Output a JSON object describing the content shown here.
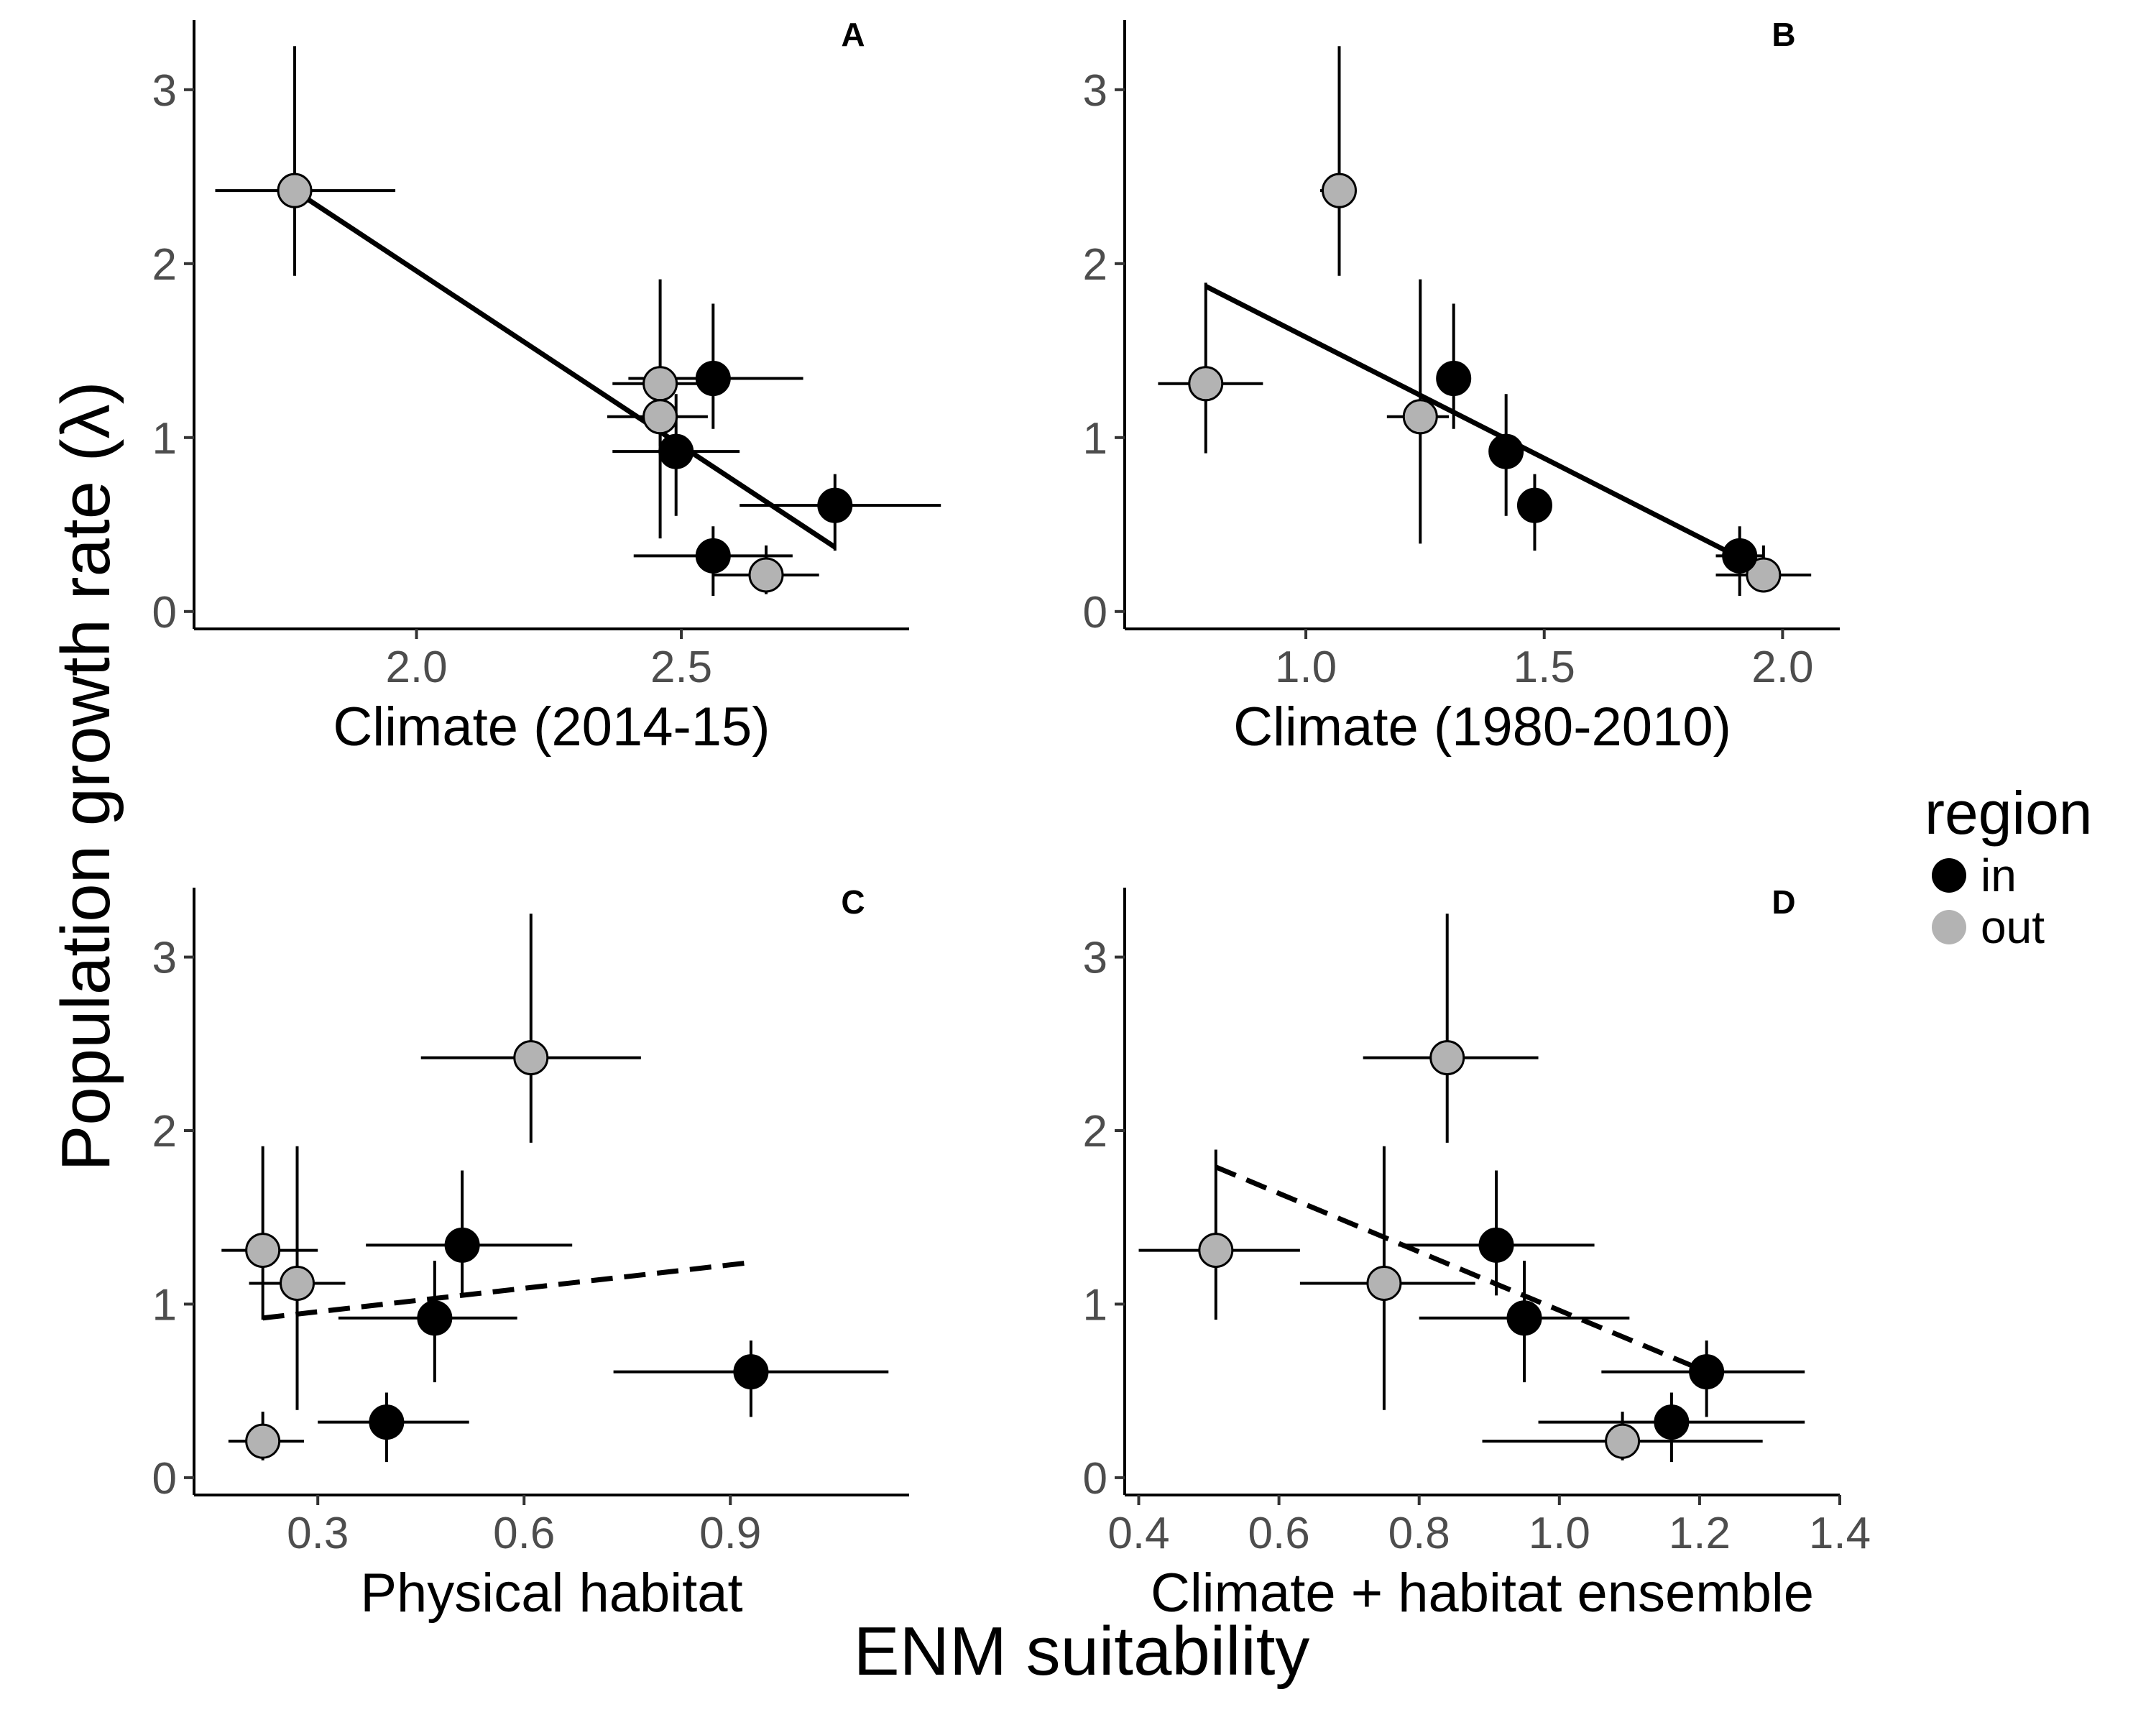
{
  "figure": {
    "ylabel": "Population growth rate (λ)",
    "xlabel": "ENM suitability"
  },
  "legend": {
    "title": "region",
    "items": [
      {
        "label": "in",
        "color": "#000000"
      },
      {
        "label": "out",
        "color": "#b3b3b3"
      }
    ]
  },
  "colors": {
    "in": "#000000",
    "out": "#b3b3b3",
    "line": "#000000"
  },
  "chart_data": [
    {
      "tag": "A",
      "type": "scatter",
      "xlabel": "Climate (2014-15)",
      "ylabel": "",
      "xlim": [
        1.58,
        2.93
      ],
      "ylim": [
        -0.1,
        3.4
      ],
      "xticks": [
        2.0,
        2.5
      ],
      "xtick_labels": [
        "2.0",
        "2.5"
      ],
      "yticks": [
        0,
        1,
        2,
        3
      ],
      "ytick_labels": [
        "0",
        "1",
        "2",
        "3"
      ],
      "fit": {
        "style": "solid",
        "x": [
          1.77,
          2.79
        ],
        "y": [
          2.42,
          0.37
        ]
      },
      "points": [
        {
          "region": "out",
          "x": 1.77,
          "y": 2.42,
          "xerr": [
            1.62,
            1.96
          ],
          "yerr": [
            1.93,
            3.25
          ]
        },
        {
          "region": "out",
          "x": 2.46,
          "y": 1.31,
          "xerr": [
            2.37,
            2.55
          ],
          "yerr": [
            0.42,
            1.91
          ]
        },
        {
          "region": "out",
          "x": 2.46,
          "y": 1.12,
          "xerr": [
            2.36,
            2.55
          ],
          "yerr": [
            0.95,
            1.25
          ]
        },
        {
          "region": "out",
          "x": 2.66,
          "y": 0.21,
          "xerr": [
            2.56,
            2.76
          ],
          "yerr": [
            0.1,
            0.38
          ]
        },
        {
          "region": "in",
          "x": 2.56,
          "y": 1.34,
          "xerr": [
            2.4,
            2.73
          ],
          "yerr": [
            1.05,
            1.77
          ]
        },
        {
          "region": "in",
          "x": 2.49,
          "y": 0.92,
          "xerr": [
            2.37,
            2.61
          ],
          "yerr": [
            0.55,
            1.25
          ]
        },
        {
          "region": "in",
          "x": 2.79,
          "y": 0.61,
          "xerr": [
            2.61,
            2.99
          ],
          "yerr": [
            0.35,
            0.79
          ]
        },
        {
          "region": "in",
          "x": 2.56,
          "y": 0.32,
          "xerr": [
            2.41,
            2.71
          ],
          "yerr": [
            0.09,
            0.49
          ]
        }
      ]
    },
    {
      "tag": "B",
      "type": "scatter",
      "xlabel": "Climate (1980-2010)",
      "ylabel": "",
      "xlim": [
        0.62,
        2.12
      ],
      "ylim": [
        -0.1,
        3.4
      ],
      "xticks": [
        1.0,
        1.5,
        2.0
      ],
      "xtick_labels": [
        "1.0",
        "1.5",
        "2.0"
      ],
      "yticks": [
        0,
        1,
        2,
        3
      ],
      "ytick_labels": [
        "0",
        "1",
        "2",
        "3"
      ],
      "fit": {
        "style": "solid",
        "x": [
          0.79,
          1.96
        ],
        "y": [
          1.87,
          0.24
        ]
      },
      "points": [
        {
          "region": "out",
          "x": 0.79,
          "y": 1.31,
          "xerr": [
            0.69,
            0.91
          ],
          "yerr": [
            0.91,
            1.89
          ]
        },
        {
          "region": "out",
          "x": 1.07,
          "y": 2.42,
          "xerr": [
            1.03,
            1.1
          ],
          "yerr": [
            1.93,
            3.25
          ]
        },
        {
          "region": "out",
          "x": 1.24,
          "y": 1.12,
          "xerr": [
            1.17,
            1.3
          ],
          "yerr": [
            0.39,
            1.91
          ]
        },
        {
          "region": "out",
          "x": 1.96,
          "y": 0.21,
          "xerr": [
            1.86,
            2.06
          ],
          "yerr": [
            0.11,
            0.38
          ]
        },
        {
          "region": "in",
          "x": 1.31,
          "y": 1.34,
          "xerr": [
            1.29,
            1.33
          ],
          "yerr": [
            1.05,
            1.77
          ]
        },
        {
          "region": "in",
          "x": 1.42,
          "y": 0.92,
          "xerr": [
            1.39,
            1.45
          ],
          "yerr": [
            0.55,
            1.25
          ]
        },
        {
          "region": "in",
          "x": 1.48,
          "y": 0.61,
          "xerr": [
            1.46,
            1.5
          ],
          "yerr": [
            0.35,
            0.79
          ]
        },
        {
          "region": "in",
          "x": 1.91,
          "y": 0.32,
          "xerr": [
            1.86,
            1.96
          ],
          "yerr": [
            0.09,
            0.49
          ]
        }
      ]
    },
    {
      "tag": "C",
      "type": "scatter",
      "xlabel": "Physical habitat",
      "ylabel": "",
      "xlim": [
        0.12,
        1.16
      ],
      "ylim": [
        -0.1,
        3.4
      ],
      "xticks": [
        0.3,
        0.6,
        0.9
      ],
      "xtick_labels": [
        "0.3",
        "0.6",
        "0.9"
      ],
      "yticks": [
        0,
        1,
        2,
        3
      ],
      "ytick_labels": [
        "0",
        "1",
        "2",
        "3"
      ],
      "fit": {
        "style": "dashed",
        "x": [
          0.22,
          0.93
        ],
        "y": [
          0.92,
          1.24
        ]
      },
      "points": [
        {
          "region": "out",
          "x": 0.61,
          "y": 2.42,
          "xerr": [
            0.45,
            0.77
          ],
          "yerr": [
            1.93,
            3.25
          ]
        },
        {
          "region": "out",
          "x": 0.22,
          "y": 1.31,
          "xerr": [
            0.16,
            0.3
          ],
          "yerr": [
            0.91,
            1.91
          ]
        },
        {
          "region": "out",
          "x": 0.27,
          "y": 1.12,
          "xerr": [
            0.2,
            0.34
          ],
          "yerr": [
            0.39,
            1.91
          ]
        },
        {
          "region": "out",
          "x": 0.22,
          "y": 0.21,
          "xerr": [
            0.17,
            0.28
          ],
          "yerr": [
            0.1,
            0.38
          ]
        },
        {
          "region": "in",
          "x": 0.51,
          "y": 1.34,
          "xerr": [
            0.37,
            0.67
          ],
          "yerr": [
            1.05,
            1.77
          ]
        },
        {
          "region": "in",
          "x": 0.47,
          "y": 0.92,
          "xerr": [
            0.33,
            0.59
          ],
          "yerr": [
            0.55,
            1.25
          ]
        },
        {
          "region": "in",
          "x": 0.93,
          "y": 0.61,
          "xerr": [
            0.73,
            1.13
          ],
          "yerr": [
            0.35,
            0.79
          ]
        },
        {
          "region": "in",
          "x": 0.4,
          "y": 0.32,
          "xerr": [
            0.3,
            0.52
          ],
          "yerr": [
            0.09,
            0.49
          ]
        }
      ]
    },
    {
      "tag": "D",
      "type": "scatter",
      "xlabel": "Climate + habitat ensemble",
      "ylabel": "",
      "xlim": [
        0.38,
        1.4
      ],
      "ylim": [
        -0.1,
        3.4
      ],
      "xticks": [
        0.4,
        0.6,
        0.8,
        1.0,
        1.2,
        1.4
      ],
      "xtick_labels": [
        "0.4",
        "0.6",
        "0.8",
        "1.0",
        "1.2",
        "1.4"
      ],
      "yticks": [
        0,
        1,
        2,
        3
      ],
      "ytick_labels": [
        "0",
        "1",
        "2",
        "3"
      ],
      "fit": {
        "style": "dashed",
        "x": [
          0.51,
          1.21
        ],
        "y": [
          1.79,
          0.61
        ]
      },
      "points": [
        {
          "region": "out",
          "x": 0.84,
          "y": 2.42,
          "xerr": [
            0.72,
            0.97
          ],
          "yerr": [
            1.93,
            3.25
          ]
        },
        {
          "region": "out",
          "x": 0.51,
          "y": 1.31,
          "xerr": [
            0.4,
            0.63
          ],
          "yerr": [
            0.91,
            1.89
          ]
        },
        {
          "region": "out",
          "x": 0.75,
          "y": 1.12,
          "xerr": [
            0.63,
            0.88
          ],
          "yerr": [
            0.39,
            1.91
          ]
        },
        {
          "region": "out",
          "x": 1.09,
          "y": 0.21,
          "xerr": [
            0.89,
            1.29
          ],
          "yerr": [
            0.1,
            0.38
          ]
        },
        {
          "region": "in",
          "x": 0.91,
          "y": 1.34,
          "xerr": [
            0.77,
            1.05
          ],
          "yerr": [
            1.05,
            1.77
          ]
        },
        {
          "region": "in",
          "x": 0.95,
          "y": 0.92,
          "xerr": [
            0.8,
            1.1
          ],
          "yerr": [
            0.55,
            1.25
          ]
        },
        {
          "region": "in",
          "x": 1.21,
          "y": 0.61,
          "xerr": [
            1.06,
            1.35
          ],
          "yerr": [
            0.35,
            0.79
          ]
        },
        {
          "region": "in",
          "x": 1.16,
          "y": 0.32,
          "xerr": [
            0.97,
            1.35
          ],
          "yerr": [
            0.09,
            0.49
          ]
        }
      ]
    }
  ]
}
